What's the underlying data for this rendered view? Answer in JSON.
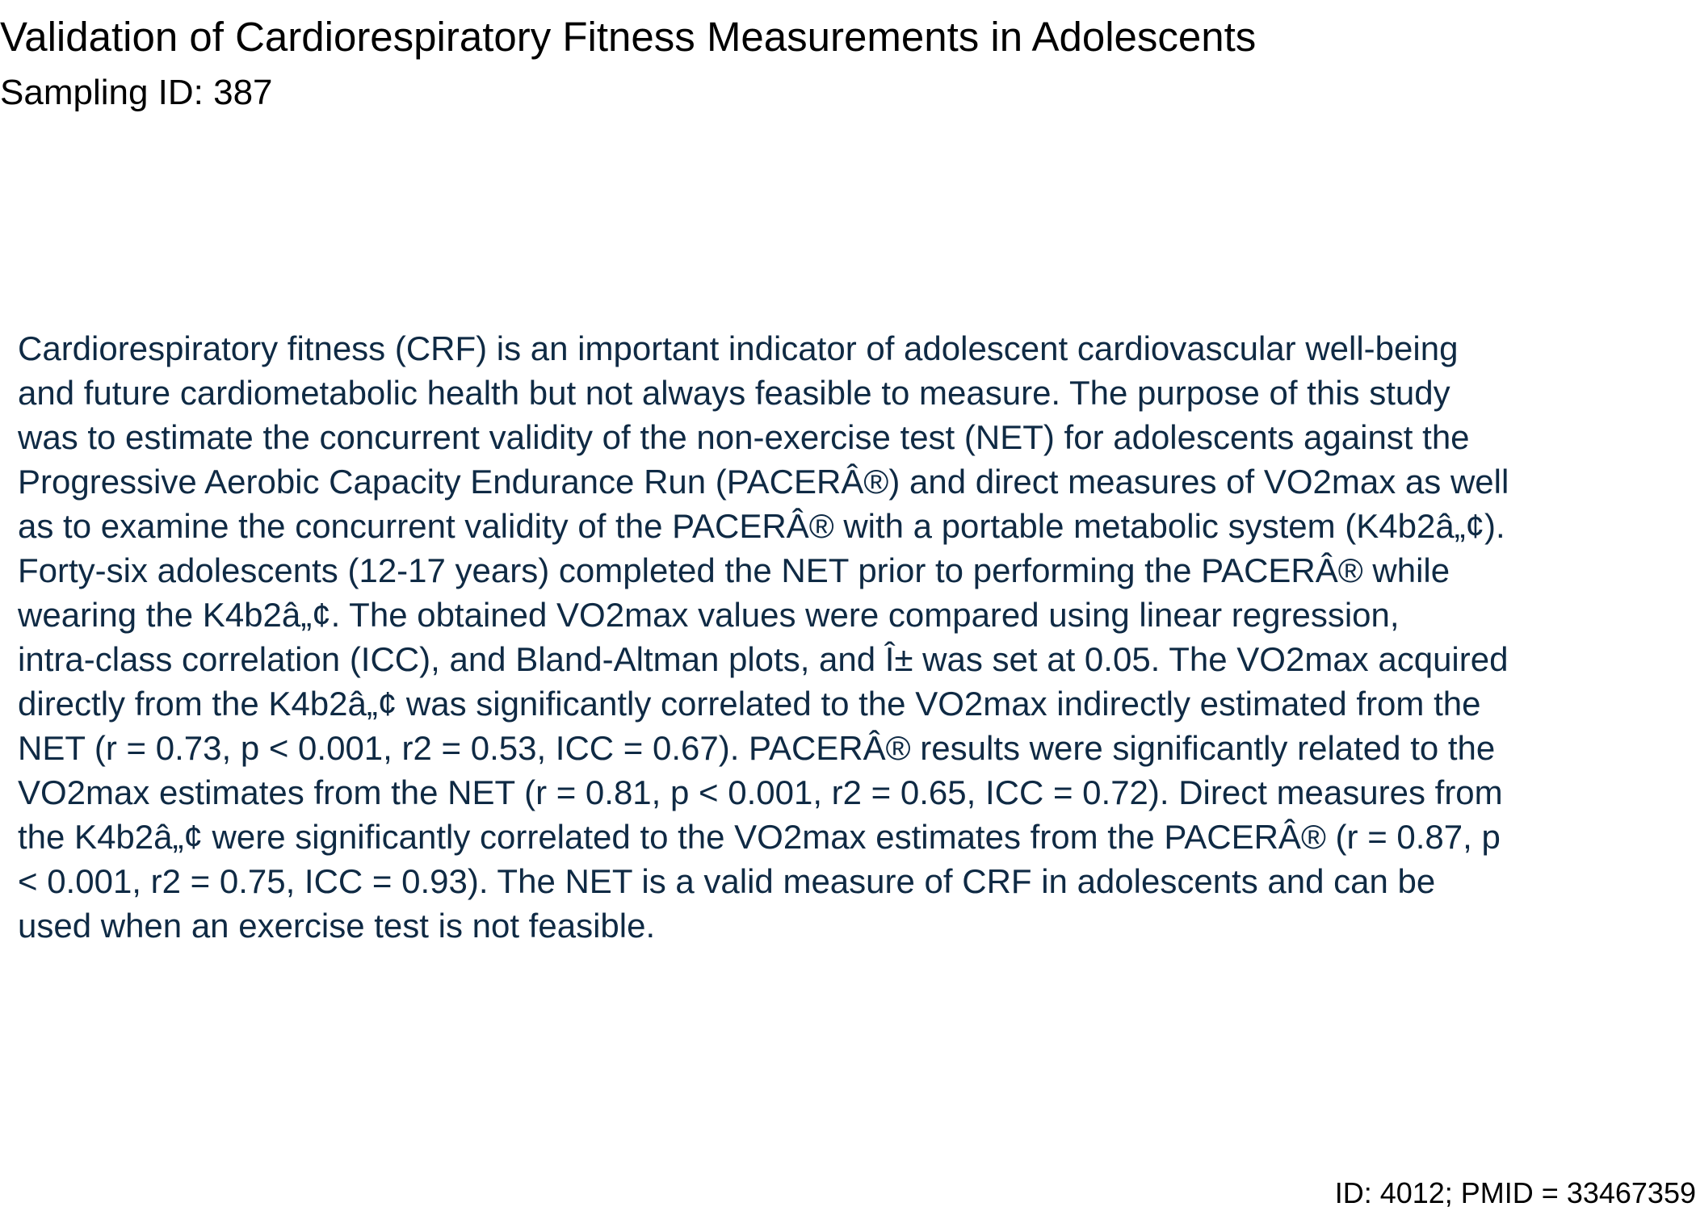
{
  "document": {
    "title": "Validation of Cardiorespiratory Fitness Measurements in Adolescents",
    "sampling_id": "Sampling ID: 387",
    "abstract_lines": [
      "Cardiorespiratory fitness (CRF) is an important indicator of adolescent cardiovascular well-being",
      "and future cardiometabolic health but not always feasible to measure. The purpose of this study",
      "was to estimate the concurrent validity of the non-exercise test (NET) for adolescents against the",
      "Progressive Aerobic Capacity Endurance Run (PACERÂ®) and direct measures of VO2max as well",
      "as to examine the concurrent validity of the PACERÂ® with a portable metabolic system (K4b2â„¢).",
      "Forty-six adolescents (12-17 years) completed the NET prior to performing the PACERÂ® while",
      "wearing the K4b2â„¢. The obtained VO2max values were compared using linear regression,",
      "intra-class correlation (ICC), and Bland-Altman plots, and Î± was set at 0.05. The VO2max acquired",
      "directly from the K4b2â„¢ was significantly correlated to the VO2max indirectly estimated from the",
      "NET (r = 0.73, p < 0.001, r2 = 0.53, ICC = 0.67). PACERÂ® results were significantly related to the",
      "VO2max estimates from the NET (r = 0.81, p < 0.001, r2 = 0.65, ICC = 0.72). Direct measures from",
      "the K4b2â„¢ were significantly correlated to the VO2max estimates from the PACERÂ® (r = 0.87, p",
      "< 0.001, r2 = 0.75, ICC = 0.93). The NET is a valid measure of CRF in adolescents and can be",
      "used when an exercise test is not feasible."
    ],
    "footer": "ID: 4012; PMID = 33467359"
  },
  "colors": {
    "title": "#000000",
    "abstract_text": "#0f2a44",
    "background": "#ffffff"
  }
}
